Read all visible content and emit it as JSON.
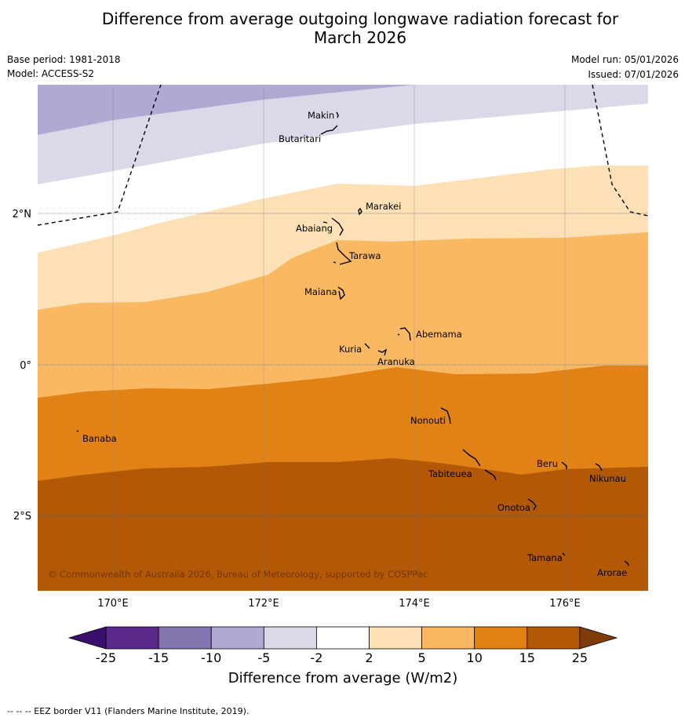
{
  "title_line1": "Difference from average outgoing longwave radiation forecast for",
  "title_line2": "March 2026",
  "base_period": "Base period: 1981-2018",
  "model": "Model: ACCESS-S2",
  "model_run": "Model run: 05/01/2026",
  "issued": "Issued: 07/01/2026",
  "copyright": "© Commonwealth of Australia 2026, Bureau of Meteorology, supported by COSPPac",
  "lat_labels": [
    "2°N",
    "0°",
    "2°S"
  ],
  "lon_labels": [
    "170°E",
    "172°E",
    "174°E",
    "176°E"
  ],
  "islands": [
    {
      "name": "Makin"
    },
    {
      "name": "Butaritari"
    },
    {
      "name": "Marakei"
    },
    {
      "name": "Abaiang"
    },
    {
      "name": "Tarawa"
    },
    {
      "name": "Maiana"
    },
    {
      "name": "Abemama"
    },
    {
      "name": "Kuria"
    },
    {
      "name": "Aranuka"
    },
    {
      "name": "Nonouti"
    },
    {
      "name": "Banaba"
    },
    {
      "name": "Tabiteuea"
    },
    {
      "name": "Beru"
    },
    {
      "name": "Nikunau"
    },
    {
      "name": "Onotoa"
    },
    {
      "name": "Tamana"
    },
    {
      "name": "Arorae"
    }
  ],
  "colorbar": {
    "title": "Difference from average (W/m2)",
    "ticks": [
      "-25",
      "-15",
      "-10",
      "-5",
      "-2",
      "2",
      "5",
      "10",
      "15",
      "25"
    ],
    "colors": [
      "#3b0f6e",
      "#5a2a8c",
      "#8474b0",
      "#b1a9d3",
      "#d9d9ea",
      "#ffffff",
      "#fde0b5",
      "#fbb862",
      "#e08215",
      "#b35806",
      "#7f3b08"
    ]
  },
  "footnote": "--  --  -- EEZ border V11 (Flanders Marine Institute, 2019).",
  "chart_data": {
    "type": "map",
    "variable": "Difference from average outgoing longwave radiation (W/m2)",
    "lon_range": [
      169,
      177.1
    ],
    "lat_range": [
      -3,
      3.7
    ],
    "bins": [
      -25,
      -15,
      -10,
      -5,
      -2,
      2,
      5,
      10,
      15,
      25
    ],
    "region_values_west_to_east_summary": [
      {
        "band": "far north (~3.2 to 3.7°N)",
        "range": "-10 to -5"
      },
      {
        "band": "~2.5 to 3.2°N",
        "range": "-5 to -2"
      },
      {
        "band": "~1.6 to 2.5°N",
        "range": "-2 to 2"
      },
      {
        "band": "~0.8 to 2.3°N",
        "range": "2 to 5"
      },
      {
        "band": "~-0.4 to 1.6°N",
        "range": "5 to 10"
      },
      {
        "band": "~-1.5 to 0°",
        "range": "10 to 15"
      },
      {
        "band": "south of ~-1.4°",
        "range": "15 to 25"
      }
    ]
  }
}
